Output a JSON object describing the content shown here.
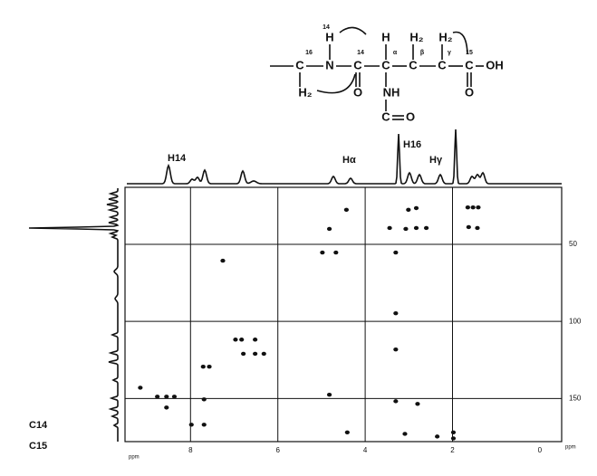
{
  "chart_data": {
    "type": "scatter",
    "x": [
      4.43,
      3.01,
      2.83,
      1.65,
      1.53,
      1.41,
      4.82,
      3.44,
      3.07,
      2.83,
      2.6,
      1.63,
      1.43,
      4.98,
      4.67,
      3.3,
      7.26,
      3.3,
      3.3,
      6.97,
      6.83,
      6.52,
      6.79,
      6.52,
      6.32,
      7.71,
      7.57,
      9.15,
      8.76,
      8.55,
      8.55,
      8.37,
      7.69,
      4.82,
      3.3,
      2.8,
      7.98,
      7.69,
      4.41,
      3.09,
      2.35,
      1.98,
      1.98
    ],
    "y": [
      27.6,
      27.6,
      26.5,
      26,
      26,
      26,
      40,
      39.4,
      40,
      39.4,
      39.4,
      38.8,
      39.4,
      55.3,
      55.3,
      55.3,
      60.6,
      94.7,
      118.2,
      111.8,
      111.8,
      111.8,
      121,
      121,
      121,
      129.4,
      129.4,
      143,
      148.8,
      148.8,
      155.9,
      148.8,
      150.6,
      147.6,
      151.8,
      153.5,
      167,
      167,
      172,
      173,
      174.7,
      172,
      175.9
    ],
    "color": "#111111",
    "xlim": [
      9.5,
      -0.5
    ],
    "ylim": [
      13,
      178
    ],
    "xticks": [
      8,
      6,
      4,
      2,
      0
    ],
    "yticks": [
      50,
      100,
      150
    ],
    "xlabel": "ppm",
    "ylabel": "ppm",
    "grid": true,
    "annotations": [
      "H14",
      "Hα",
      "H16",
      "Hγ",
      "C14",
      "C15"
    ],
    "structure": [
      "14",
      "H",
      "N",
      "16",
      "C",
      "H₂",
      "C",
      "14",
      "O",
      "H",
      "α",
      "C",
      "NH",
      "C",
      "O",
      "H₂",
      "β",
      "C",
      "H₂",
      "γ",
      "C",
      "15",
      "C",
      "OH",
      "O"
    ]
  }
}
